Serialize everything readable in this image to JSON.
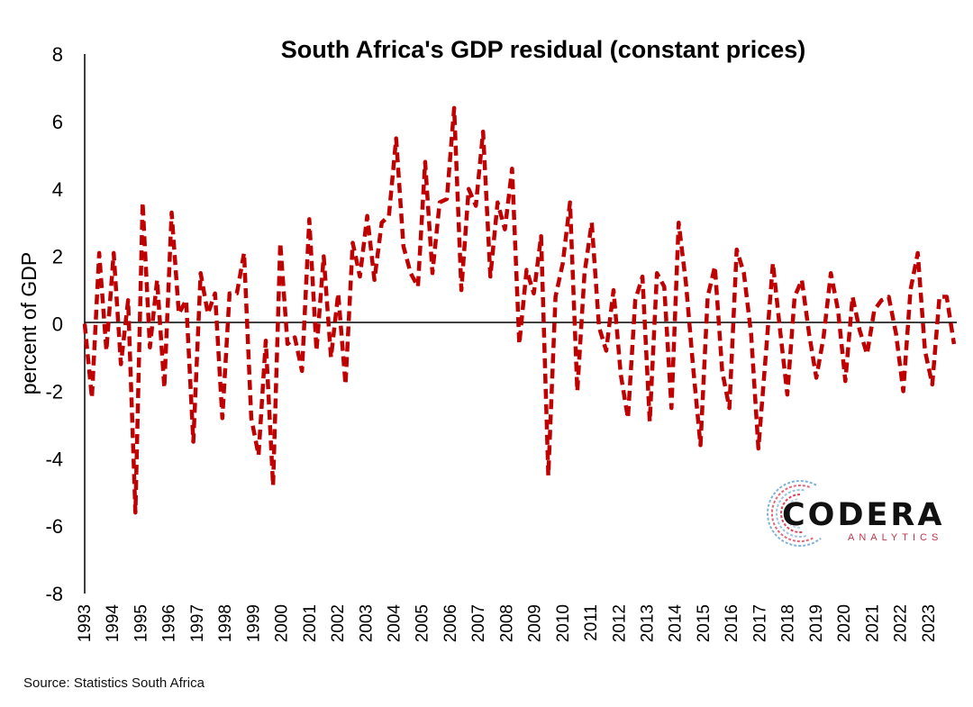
{
  "chart_data": {
    "type": "line",
    "title": "South Africa's GDP residual (constant prices)",
    "xlabel": "",
    "ylabel": "percent of GDP",
    "ylim": [
      -8,
      8
    ],
    "yticks": [
      "8",
      "6",
      "4",
      "2",
      "0",
      "-2",
      "-4",
      "-6",
      "-8"
    ],
    "x_start_year": 1993,
    "x_end_year": 2024,
    "x_tick_labels": [
      "1993",
      "1994",
      "1995",
      "1996",
      "1997",
      "1998",
      "1999",
      "2000",
      "2001",
      "2002",
      "2003",
      "2004",
      "2005",
      "2006",
      "2007",
      "2008",
      "2009",
      "2010",
      "2011",
      "2012",
      "2013",
      "2014",
      "2015",
      "2016",
      "2017",
      "2018",
      "2019",
      "2020",
      "2021",
      "2022",
      "2023"
    ],
    "grid": false,
    "legend": "none",
    "series": [
      {
        "color": "#c00000",
        "line_style": "dashed",
        "values": [
          0.0,
          -2.2,
          2.1,
          -0.8,
          2.1,
          -1.2,
          0.7,
          -5.6,
          3.6,
          -0.7,
          1.3,
          -1.9,
          3.3,
          0.3,
          0.7,
          -3.5,
          1.5,
          0.3,
          0.9,
          -2.8,
          0.9,
          0.9,
          2.1,
          -2.8,
          -3.9,
          -0.5,
          -4.8,
          2.4,
          -0.6,
          -0.4,
          -1.4,
          3.1,
          -0.8,
          2.0,
          -1.0,
          0.9,
          -1.8,
          2.4,
          1.4,
          3.2,
          1.3,
          3.0,
          3.2,
          5.5,
          2.3,
          1.5,
          1.1,
          4.8,
          1.5,
          3.6,
          3.7,
          6.4,
          1.0,
          4.0,
          3.5,
          5.7,
          1.4,
          3.6,
          2.8,
          4.6,
          -0.6,
          1.6,
          0.9,
          2.6,
          -4.5,
          0.8,
          1.8,
          3.6,
          -2.0,
          1.5,
          3.0,
          -0.1,
          -0.8,
          1.0,
          -1.5,
          -2.8,
          0.7,
          1.4,
          -2.9,
          1.5,
          1.1,
          -2.5,
          3.0,
          1.2,
          -1.3,
          -3.6,
          0.8,
          1.7,
          -1.4,
          -2.5,
          2.2,
          1.5,
          -0.3,
          -3.7,
          -1.0,
          1.8,
          -0.2,
          -2.1,
          0.8,
          1.3,
          -0.3,
          -1.6,
          -0.4,
          1.5,
          0.4,
          -1.7,
          0.8,
          -0.2,
          -0.9,
          0.4,
          0.7,
          0.8,
          -0.3,
          -2.0,
          1.0,
          2.1,
          -0.8,
          -1.8,
          0.8,
          0.8,
          -0.6
        ]
      }
    ]
  },
  "source_text": "Source: Statistics South Africa",
  "logo": {
    "wordmark": "CODERA",
    "tagline": "ANALYTICS"
  }
}
